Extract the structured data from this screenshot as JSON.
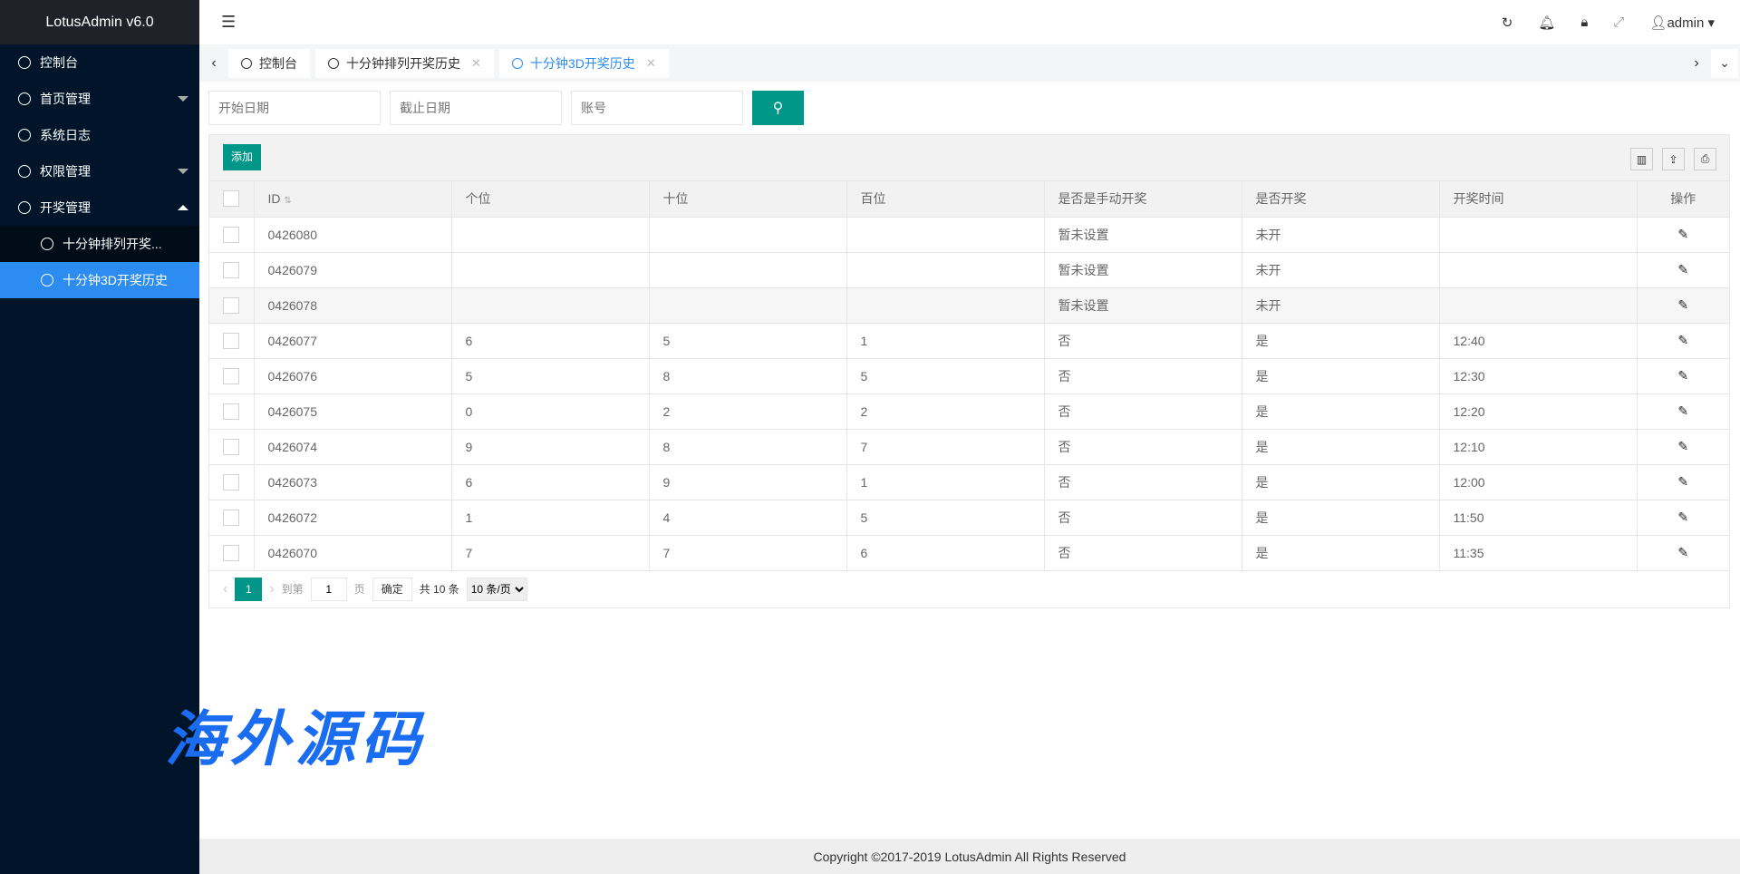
{
  "app": {
    "title": "LotusAdmin v6.0"
  },
  "sidebar": {
    "items": [
      {
        "label": "控制台",
        "icon": "dashboard-icon"
      },
      {
        "label": "首页管理",
        "icon": "circle-icon"
      },
      {
        "label": "系统日志",
        "icon": "log-icon"
      },
      {
        "label": "权限管理",
        "icon": "shield-icon"
      },
      {
        "label": "开奖管理",
        "icon": "circle-icon"
      }
    ],
    "sub": [
      {
        "label": "十分钟排列开奖..."
      },
      {
        "label": "十分钟3D开奖历史",
        "active": true
      }
    ]
  },
  "header": {
    "user": "admin"
  },
  "tabs": [
    {
      "label": "控制台"
    },
    {
      "label": "十分钟排列开奖历史"
    },
    {
      "label": "十分钟3D开奖历史",
      "active": true
    }
  ],
  "search": {
    "start_placeholder": "开始日期",
    "end_placeholder": "截止日期",
    "account_placeholder": "账号"
  },
  "toolbar": {
    "add_label": "添加"
  },
  "table": {
    "columns": [
      "ID",
      "个位",
      "十位",
      "百位",
      "是否是手动开奖",
      "是否开奖",
      "开奖时间",
      "操作"
    ],
    "rows": [
      [
        "0426080",
        "",
        "",
        "",
        "暂未设置",
        "未开",
        ""
      ],
      [
        "0426079",
        "",
        "",
        "",
        "暂未设置",
        "未开",
        ""
      ],
      [
        "0426078",
        "",
        "",
        "",
        "暂未设置",
        "未开",
        ""
      ],
      [
        "0426077",
        "6",
        "5",
        "1",
        "否",
        "是",
        "12:40"
      ],
      [
        "0426076",
        "5",
        "8",
        "5",
        "否",
        "是",
        "12:30"
      ],
      [
        "0426075",
        "0",
        "2",
        "2",
        "否",
        "是",
        "12:20"
      ],
      [
        "0426074",
        "9",
        "8",
        "7",
        "否",
        "是",
        "12:10"
      ],
      [
        "0426073",
        "6",
        "9",
        "1",
        "否",
        "是",
        "12:00"
      ],
      [
        "0426072",
        "1",
        "4",
        "5",
        "否",
        "是",
        "11:50"
      ],
      [
        "0426070",
        "7",
        "7",
        "6",
        "否",
        "是",
        "11:35"
      ]
    ]
  },
  "pager": {
    "current": "1",
    "goto_label": "到第",
    "goto_value": "1",
    "page_label": "页",
    "confirm": "确定",
    "total": "共 10 条",
    "per_page": "10 条/页"
  },
  "footer": {
    "copyright": "Copyright ©2017-2019 LotusAdmin All Rights Reserved"
  },
  "watermark": "海外源码",
  "colors": {
    "accent": "#009688",
    "active": "#2d8cf0",
    "sidebar": "#001529"
  }
}
